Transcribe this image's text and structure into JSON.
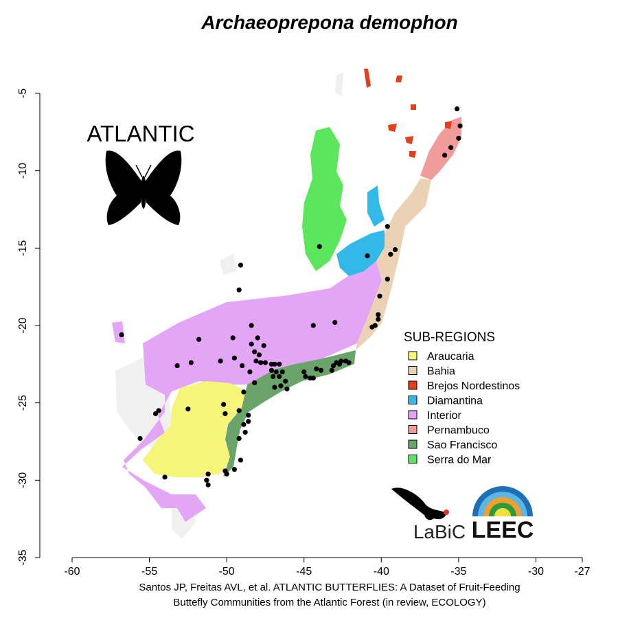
{
  "title": "Archaeoprepona demophon",
  "region_label": "ATLANTIC",
  "legend": {
    "title": "SUB-REGIONS",
    "items": [
      {
        "label": "Araucaria",
        "color": "#f5f57a"
      },
      {
        "label": "Bahia",
        "color": "#ecd2b4"
      },
      {
        "label": "Brejos Nordestinos",
        "color": "#e2401a"
      },
      {
        "label": "Diamantina",
        "color": "#33b8ea"
      },
      {
        "label": "Interior",
        "color": "#e3a5f5"
      },
      {
        "label": "Pernambuco",
        "color": "#f29b9b"
      },
      {
        "label": "Sao Francisco",
        "color": "#6aa46a"
      },
      {
        "label": "Serra do Mar",
        "color": "#5ce65c"
      }
    ]
  },
  "x_axis": {
    "ticks": [
      "-60",
      "-55",
      "-50",
      "-45",
      "-40",
      "-35",
      "-30",
      "-27"
    ],
    "values": [
      -60,
      -55,
      -50,
      -45,
      -40,
      -35,
      -30,
      -27
    ]
  },
  "y_axis": {
    "ticks": [
      "-5",
      "-10",
      "-15",
      "-20",
      "-25",
      "-30",
      "-35"
    ],
    "values": [
      -5,
      -10,
      -15,
      -20,
      -25,
      -30,
      -35
    ]
  },
  "caption": {
    "line1": "Santos JP, Freitas AVL, et al. ATLANTIC BUTTERFLIES: A Dataset of Fruit-Feeding",
    "line2": "Buttefly Communities from the Atlantic Forest (in review, ECOLOGY)"
  },
  "logos": {
    "labic_text": "LaBiC",
    "leec_text": "LEEC"
  },
  "chart_data": {
    "type": "scatter",
    "title": "Archaeoprepona demophon",
    "xlim": [
      -60,
      -27
    ],
    "ylim": [
      -35,
      -5
    ],
    "points": [
      {
        "x": -35.1,
        "y": -6.0
      },
      {
        "x": -34.9,
        "y": -7.1
      },
      {
        "x": -35.0,
        "y": -7.9
      },
      {
        "x": -35.5,
        "y": -8.5
      },
      {
        "x": -35.9,
        "y": -9.0
      },
      {
        "x": -39.6,
        "y": -13.6
      },
      {
        "x": -39.1,
        "y": -15.1
      },
      {
        "x": -39.4,
        "y": -15.4
      },
      {
        "x": -39.6,
        "y": -17.0
      },
      {
        "x": -40.1,
        "y": -18.1
      },
      {
        "x": -40.2,
        "y": -19.3
      },
      {
        "x": -40.2,
        "y": -19.6
      },
      {
        "x": -40.4,
        "y": -20.0
      },
      {
        "x": -40.6,
        "y": -20.1
      },
      {
        "x": -44.0,
        "y": -14.9
      },
      {
        "x": -40.9,
        "y": -15.5
      },
      {
        "x": -49.1,
        "y": -16.1
      },
      {
        "x": -49.2,
        "y": -17.7
      },
      {
        "x": -43.0,
        "y": -19.8
      },
      {
        "x": -44.4,
        "y": -20.0
      },
      {
        "x": -56.8,
        "y": -20.6
      },
      {
        "x": -51.8,
        "y": -20.9
      },
      {
        "x": -49.6,
        "y": -20.8
      },
      {
        "x": -48.4,
        "y": -20.0
      },
      {
        "x": -48.0,
        "y": -20.8
      },
      {
        "x": -47.6,
        "y": -21.3
      },
      {
        "x": -48.4,
        "y": -21.2
      },
      {
        "x": -48.2,
        "y": -21.7
      },
      {
        "x": -47.9,
        "y": -21.9
      },
      {
        "x": -48.1,
        "y": -22.3
      },
      {
        "x": -47.8,
        "y": -22.4
      },
      {
        "x": -47.5,
        "y": -22.4
      },
      {
        "x": -47.1,
        "y": -22.5
      },
      {
        "x": -46.9,
        "y": -22.5
      },
      {
        "x": -46.6,
        "y": -22.5
      },
      {
        "x": -47.1,
        "y": -22.9
      },
      {
        "x": -46.8,
        "y": -23.0
      },
      {
        "x": -46.4,
        "y": -23.0
      },
      {
        "x": -47.0,
        "y": -23.3
      },
      {
        "x": -46.6,
        "y": -23.3
      },
      {
        "x": -46.2,
        "y": -23.6
      },
      {
        "x": -46.5,
        "y": -23.9
      },
      {
        "x": -46.9,
        "y": -24.0
      },
      {
        "x": -46.1,
        "y": -24.1
      },
      {
        "x": -45.0,
        "y": -23.0
      },
      {
        "x": -44.9,
        "y": -23.3
      },
      {
        "x": -44.6,
        "y": -23.4
      },
      {
        "x": -44.4,
        "y": -23.4
      },
      {
        "x": -43.9,
        "y": -22.9
      },
      {
        "x": -44.2,
        "y": -22.8
      },
      {
        "x": -43.1,
        "y": -22.6
      },
      {
        "x": -42.7,
        "y": -22.5
      },
      {
        "x": -43.2,
        "y": -22.9
      },
      {
        "x": -42.9,
        "y": -22.4
      },
      {
        "x": -42.6,
        "y": -22.3
      },
      {
        "x": -42.3,
        "y": -22.3
      },
      {
        "x": -42.1,
        "y": -22.4
      },
      {
        "x": -52.3,
        "y": -22.4
      },
      {
        "x": -53.2,
        "y": -22.6
      },
      {
        "x": -50.4,
        "y": -22.3
      },
      {
        "x": -49.5,
        "y": -22.1
      },
      {
        "x": -49.0,
        "y": -22.6
      },
      {
        "x": -48.5,
        "y": -23.0
      },
      {
        "x": -48.2,
        "y": -23.7
      },
      {
        "x": -48.9,
        "y": -24.3
      },
      {
        "x": -50.2,
        "y": -25.1
      },
      {
        "x": -50.1,
        "y": -25.7
      },
      {
        "x": -49.2,
        "y": -25.5
      },
      {
        "x": -52.5,
        "y": -25.4
      },
      {
        "x": -54.4,
        "y": -25.5
      },
      {
        "x": -54.6,
        "y": -25.7
      },
      {
        "x": -48.6,
        "y": -25.8
      },
      {
        "x": -48.6,
        "y": -26.2
      },
      {
        "x": -48.9,
        "y": -26.4
      },
      {
        "x": -48.8,
        "y": -26.9
      },
      {
        "x": -49.2,
        "y": -27.3
      },
      {
        "x": -55.6,
        "y": -27.3
      },
      {
        "x": -49.1,
        "y": -28.7
      },
      {
        "x": -49.5,
        "y": -29.3
      },
      {
        "x": -50.1,
        "y": -29.4
      },
      {
        "x": -50.0,
        "y": -29.6
      },
      {
        "x": -51.2,
        "y": -29.6
      },
      {
        "x": -54.0,
        "y": -29.8
      },
      {
        "x": -51.3,
        "y": -30.0
      },
      {
        "x": -51.2,
        "y": -30.3
      }
    ]
  }
}
